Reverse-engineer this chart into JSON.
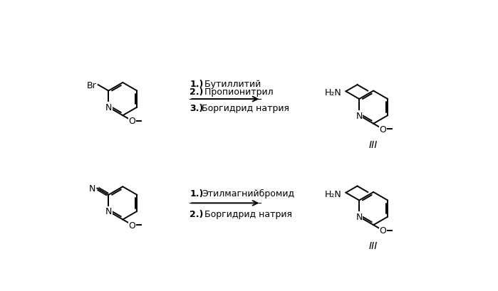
{
  "background_color": "#ffffff",
  "text_color": "#000000",
  "line_color": "#000000",
  "reaction1": {
    "reagents_bold": [
      "1.)",
      "2.)"
    ],
    "reagents_normal": [
      "3.)"
    ],
    "reagent1_bold": "1.)",
    "reagent1_text": " Бутиллитий",
    "reagent2_bold": "2.)",
    "reagent2_text": " Пропионитрил",
    "reagent3_bold": "3.)",
    "reagent3_text": "Боргидрид натрия",
    "label": "III"
  },
  "reaction2": {
    "reagent1_bold": "1.)",
    "reagent1_text": "Этилмагнийбромид",
    "reagent2_bold": "2.)",
    "reagent2_text": " Боргидрид натрия",
    "label": "III"
  },
  "font_size": 9,
  "font_size_label": 10,
  "lw": 1.4
}
